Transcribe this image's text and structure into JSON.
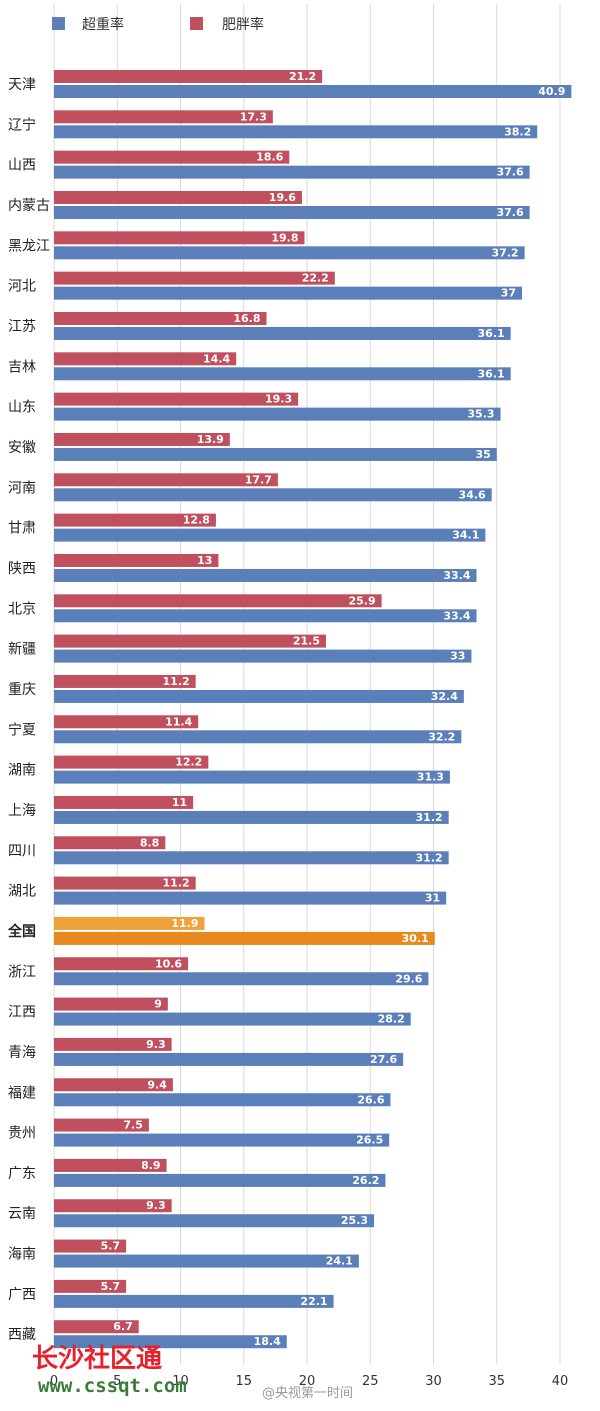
{
  "chart_data": {
    "type": "bar",
    "orientation": "horizontal",
    "categories": [
      "天津",
      "辽宁",
      "山西",
      "内蒙古",
      "黑龙江",
      "河北",
      "江苏",
      "吉林",
      "山东",
      "安徽",
      "河南",
      "甘肃",
      "陕西",
      "北京",
      "新疆",
      "重庆",
      "宁夏",
      "湖南",
      "上海",
      "四川",
      "湖北",
      "全国",
      "浙江",
      "江西",
      "青海",
      "福建",
      "贵州",
      "广东",
      "云南",
      "海南",
      "广西",
      "西藏"
    ],
    "series": [
      {
        "name": "肥胖率",
        "color": "#c0505e",
        "values": [
          21.2,
          17.3,
          18.6,
          19.6,
          19.8,
          22.2,
          16.8,
          14.4,
          19.3,
          13.9,
          17.7,
          12.8,
          13,
          25.9,
          21.5,
          11.2,
          11.4,
          12.2,
          11,
          8.8,
          11.2,
          11.9,
          10.6,
          9,
          9.3,
          9.4,
          7.5,
          8.9,
          9.3,
          5.7,
          5.7,
          6.7
        ]
      },
      {
        "name": "超重率",
        "color": "#5b7fb8",
        "values": [
          40.9,
          38.2,
          37.6,
          37.6,
          37.2,
          37,
          36.1,
          36.1,
          35.3,
          35,
          34.6,
          34.1,
          33.4,
          33.4,
          33,
          32.4,
          32.2,
          31.3,
          31.2,
          31.2,
          31,
          30.1,
          29.6,
          28.2,
          27.6,
          26.6,
          26.5,
          26.2,
          25.3,
          24.1,
          22.1,
          18.4
        ]
      }
    ],
    "highlight_category": "全国",
    "highlight_colors": {
      "肥胖率": "#f0a23a",
      "超重率": "#e8891f"
    },
    "xlim": [
      0,
      40
    ],
    "xticks": [
      0,
      5,
      10,
      15,
      20,
      25,
      30,
      35,
      40
    ],
    "xtick_labels": [
      "0",
      "5",
      "10",
      "15",
      "20",
      "25",
      "30",
      "35",
      "40"
    ],
    "grid": true,
    "legend_position": "top-left"
  },
  "watermarks": {
    "site_name": "长沙社区通",
    "site_url": "www.cssqt.com",
    "weibo": "@央视第一时间"
  }
}
